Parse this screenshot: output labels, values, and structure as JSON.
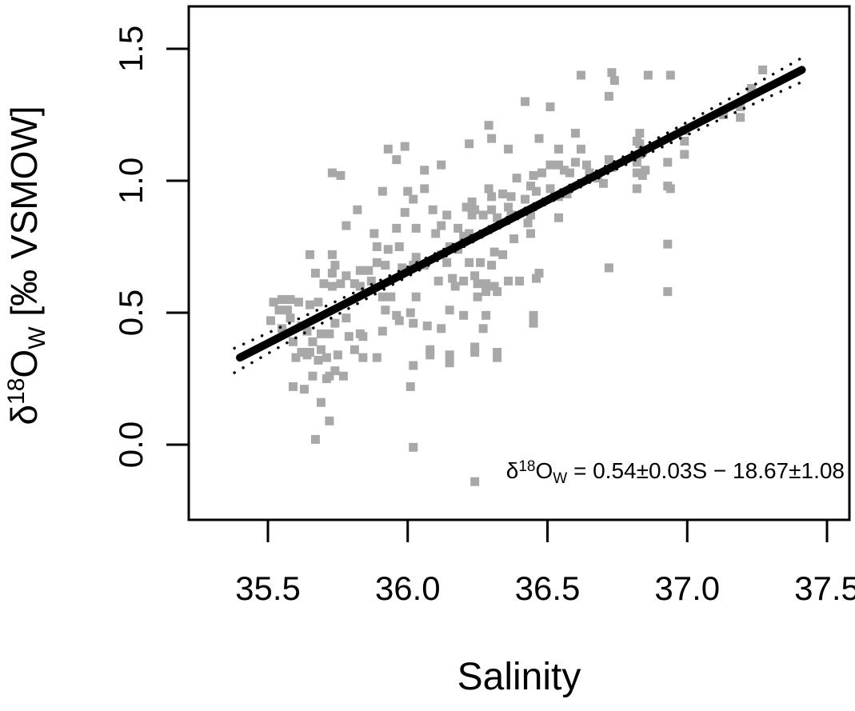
{
  "figure": {
    "x_axis": {
      "title": "Salinity",
      "tick_labels": [
        "35.5",
        "36.0",
        "36.5",
        "37.0",
        "37.5"
      ],
      "tick_values": [
        35.5,
        36.0,
        36.5,
        37.0,
        37.5
      ]
    },
    "y_axis": {
      "title": {
        "delta": "δ",
        "superscript": "18",
        "element": "O",
        "subscript": "W",
        "units": " [‰ VSMOW]"
      },
      "tick_labels": [
        "0.0",
        "0.5",
        "1.0",
        "1.5"
      ],
      "tick_values": [
        0.0,
        0.5,
        1.0,
        1.5
      ]
    },
    "equation": {
      "delta": "δ",
      "superscript": "18",
      "element": "O",
      "subscript": "W",
      "rest": " = 0.54±0.03S − 18.67±1.08"
    },
    "colors": {
      "marker": "#a8a8a8",
      "line": "#000000",
      "background": "#ffffff"
    }
  },
  "chart_data": {
    "type": "scatter",
    "title": "",
    "xlabel": "Salinity",
    "ylabel": "δ18OW [‰ VSMOW]",
    "xlim": [
      35.22,
      37.58
    ],
    "ylim": [
      -0.28,
      1.66
    ],
    "x_ticks": [
      35.5,
      36.0,
      36.5,
      37.0,
      37.5
    ],
    "y_ticks": [
      0.0,
      0.5,
      1.0,
      1.5
    ],
    "grid": false,
    "legend": null,
    "marker": "square",
    "marker_color": "#a8a8a8",
    "annotation": "δ18OW = 0.54±0.03S − 18.67±1.08",
    "trendline": {
      "x1": 35.4,
      "y1": 0.33,
      "x2": 37.41,
      "y2": 1.42
    },
    "confidence_band": {
      "min_offset": 0.013,
      "curvature": 0.032,
      "center": 36.4,
      "x_start": 35.38,
      "x_end": 37.44
    },
    "points": [
      [
        35.93,
        1.12
      ],
      [
        35.99,
        1.13
      ],
      [
        35.96,
        1.08
      ],
      [
        35.73,
        1.03
      ],
      [
        35.76,
        1.02
      ],
      [
        35.91,
        0.96
      ],
      [
        36.0,
        0.96
      ],
      [
        36.02,
        0.93
      ],
      [
        36.62,
        1.4
      ],
      [
        36.42,
        1.3
      ],
      [
        36.51,
        1.28
      ],
      [
        36.72,
        1.32
      ],
      [
        36.29,
        1.21
      ],
      [
        36.3,
        1.16
      ],
      [
        36.22,
        1.14
      ],
      [
        36.6,
        1.18
      ],
      [
        36.36,
        1.12
      ],
      [
        36.47,
        1.16
      ],
      [
        36.54,
        1.12
      ],
      [
        36.62,
        1.12
      ],
      [
        36.06,
        1.04
      ],
      [
        36.12,
        1.06
      ],
      [
        36.06,
        0.97
      ],
      [
        36.45,
        1.02
      ],
      [
        36.48,
        1.03
      ],
      [
        36.51,
        1.06
      ],
      [
        36.54,
        1.06
      ],
      [
        36.56,
        1.04
      ],
      [
        36.58,
        1.03
      ],
      [
        36.6,
        1.07
      ],
      [
        36.64,
        1.06
      ],
      [
        36.65,
        1.03
      ],
      [
        36.68,
        1.01
      ],
      [
        36.7,
        0.99
      ],
      [
        36.39,
        1.01
      ],
      [
        36.44,
        0.98
      ],
      [
        36.46,
        0.96
      ],
      [
        36.51,
        0.97
      ],
      [
        36.54,
        0.94
      ],
      [
        36.57,
        0.95
      ],
      [
        36.29,
        0.97
      ],
      [
        36.3,
        0.94
      ],
      [
        36.34,
        0.95
      ],
      [
        36.37,
        0.94
      ],
      [
        36.42,
        0.93
      ],
      [
        36.23,
        0.92
      ],
      [
        36.73,
        1.41
      ],
      [
        36.74,
        1.38
      ],
      [
        36.86,
        1.4
      ],
      [
        36.94,
        1.4
      ],
      [
        37.27,
        1.42
      ],
      [
        37.23,
        1.35
      ],
      [
        37.13,
        1.25
      ],
      [
        37.19,
        1.28
      ],
      [
        37.19,
        1.24
      ],
      [
        36.99,
        1.19
      ],
      [
        36.99,
        1.15
      ],
      [
        36.99,
        1.1
      ],
      [
        36.83,
        1.18
      ],
      [
        36.83,
        1.14
      ],
      [
        36.83,
        1.1
      ],
      [
        36.82,
        1.15
      ],
      [
        36.84,
        1.11
      ],
      [
        36.82,
        1.07
      ],
      [
        36.85,
        1.04
      ],
      [
        36.72,
        1.08
      ],
      [
        36.73,
        1.05
      ],
      [
        36.82,
        1.03
      ],
      [
        36.84,
        1.02
      ],
      [
        36.82,
        0.97
      ],
      [
        36.93,
        1.07
      ],
      [
        36.93,
        0.98
      ],
      [
        36.94,
        0.97
      ],
      [
        35.82,
        0.89
      ],
      [
        35.99,
        0.88
      ],
      [
        35.78,
        0.83
      ],
      [
        35.96,
        0.82
      ],
      [
        35.88,
        0.8
      ],
      [
        35.89,
        0.75
      ],
      [
        35.93,
        0.74
      ],
      [
        35.97,
        0.75
      ],
      [
        35.65,
        0.72
      ],
      [
        35.73,
        0.72
      ],
      [
        35.74,
        0.68
      ],
      [
        35.89,
        0.69
      ],
      [
        35.92,
        0.68
      ],
      [
        35.98,
        0.67
      ],
      [
        36.02,
        0.68
      ],
      [
        35.67,
        0.65
      ],
      [
        35.73,
        0.65
      ],
      [
        35.78,
        0.64
      ],
      [
        35.83,
        0.66
      ],
      [
        35.86,
        0.66
      ],
      [
        35.7,
        0.61
      ],
      [
        35.73,
        0.6
      ],
      [
        35.76,
        0.61
      ],
      [
        35.81,
        0.61
      ],
      [
        35.83,
        0.6
      ],
      [
        35.87,
        0.62
      ],
      [
        35.52,
        0.54
      ],
      [
        35.55,
        0.55
      ],
      [
        35.58,
        0.55
      ],
      [
        35.61,
        0.54
      ],
      [
        35.65,
        0.53
      ],
      [
        35.68,
        0.54
      ],
      [
        35.54,
        0.51
      ],
      [
        35.57,
        0.51
      ],
      [
        35.51,
        0.47
      ],
      [
        35.55,
        0.44
      ],
      [
        35.58,
        0.48
      ],
      [
        35.62,
        0.45
      ],
      [
        35.64,
        0.43
      ],
      [
        35.69,
        0.42
      ],
      [
        35.72,
        0.42
      ],
      [
        35.74,
        0.46
      ],
      [
        35.78,
        0.48
      ],
      [
        35.79,
        0.41
      ],
      [
        35.83,
        0.42
      ],
      [
        35.59,
        0.39
      ],
      [
        35.66,
        0.39
      ],
      [
        35.62,
        0.35
      ],
      [
        35.65,
        0.35
      ],
      [
        35.69,
        0.36
      ],
      [
        35.75,
        0.34
      ],
      [
        35.81,
        0.36
      ],
      [
        35.84,
        0.41
      ],
      [
        35.91,
        0.56
      ],
      [
        35.94,
        0.56
      ],
      [
        35.92,
        0.51
      ],
      [
        35.96,
        0.49
      ],
      [
        35.91,
        0.43
      ],
      [
        35.97,
        0.47
      ],
      [
        36.01,
        0.5
      ],
      [
        36.03,
        0.56
      ],
      [
        36.02,
        0.46
      ],
      [
        36.09,
        0.89
      ],
      [
        36.14,
        0.87
      ],
      [
        36.12,
        0.83
      ],
      [
        36.1,
        0.8
      ],
      [
        36.21,
        0.9
      ],
      [
        36.24,
        0.89
      ],
      [
        36.23,
        0.87
      ],
      [
        36.27,
        0.87
      ],
      [
        36.3,
        0.89
      ],
      [
        36.32,
        0.86
      ],
      [
        36.36,
        0.9
      ],
      [
        36.37,
        0.87
      ],
      [
        36.18,
        0.82
      ],
      [
        36.2,
        0.79
      ],
      [
        36.22,
        0.8
      ],
      [
        36.15,
        0.75
      ],
      [
        36.18,
        0.74
      ],
      [
        36.12,
        0.72
      ],
      [
        36.14,
        0.69
      ],
      [
        36.03,
        0.82
      ],
      [
        36.03,
        0.71
      ],
      [
        36.06,
        0.68
      ],
      [
        36.44,
        0.87
      ],
      [
        36.43,
        0.84
      ],
      [
        36.54,
        0.86
      ],
      [
        36.38,
        0.78
      ],
      [
        36.44,
        0.8
      ],
      [
        36.31,
        0.73
      ],
      [
        36.34,
        0.72
      ],
      [
        36.22,
        0.69
      ],
      [
        36.26,
        0.69
      ],
      [
        36.3,
        0.68
      ],
      [
        36.47,
        0.65
      ],
      [
        36.72,
        0.67
      ],
      [
        36.11,
        0.62
      ],
      [
        36.16,
        0.63
      ],
      [
        36.17,
        0.6
      ],
      [
        36.2,
        0.62
      ],
      [
        36.24,
        0.64
      ],
      [
        36.25,
        0.61
      ],
      [
        36.28,
        0.61
      ],
      [
        36.31,
        0.6
      ],
      [
        36.32,
        0.58
      ],
      [
        36.36,
        0.62
      ],
      [
        36.4,
        0.62
      ],
      [
        36.25,
        0.56
      ],
      [
        36.28,
        0.58
      ],
      [
        36.46,
        0.63
      ],
      [
        36.15,
        0.51
      ],
      [
        36.2,
        0.49
      ],
      [
        36.28,
        0.49
      ],
      [
        36.07,
        0.45
      ],
      [
        36.12,
        0.44
      ],
      [
        36.27,
        0.44
      ],
      [
        36.45,
        0.49
      ],
      [
        36.45,
        0.46
      ],
      [
        36.24,
        0.37
      ],
      [
        36.32,
        0.35
      ],
      [
        36.08,
        0.36
      ],
      [
        36.15,
        0.34
      ],
      [
        36.93,
        0.76
      ],
      [
        36.93,
        0.58
      ],
      [
        35.6,
        0.33
      ],
      [
        35.64,
        0.34
      ],
      [
        35.68,
        0.32
      ],
      [
        35.71,
        0.33
      ],
      [
        35.72,
        0.26
      ],
      [
        35.74,
        0.28
      ],
      [
        35.77,
        0.26
      ],
      [
        35.66,
        0.26
      ],
      [
        35.71,
        0.25
      ],
      [
        35.59,
        0.22
      ],
      [
        35.63,
        0.21
      ],
      [
        35.84,
        0.33
      ],
      [
        35.89,
        0.33
      ],
      [
        36.02,
        0.3
      ],
      [
        36.01,
        0.22
      ],
      [
        35.69,
        0.16
      ],
      [
        35.72,
        0.09
      ],
      [
        35.67,
        0.02
      ],
      [
        36.02,
        -0.01
      ],
      [
        36.08,
        0.34
      ],
      [
        36.15,
        0.31
      ],
      [
        36.24,
        0.35
      ],
      [
        36.32,
        0.33
      ],
      [
        36.24,
        -0.14
      ]
    ]
  }
}
